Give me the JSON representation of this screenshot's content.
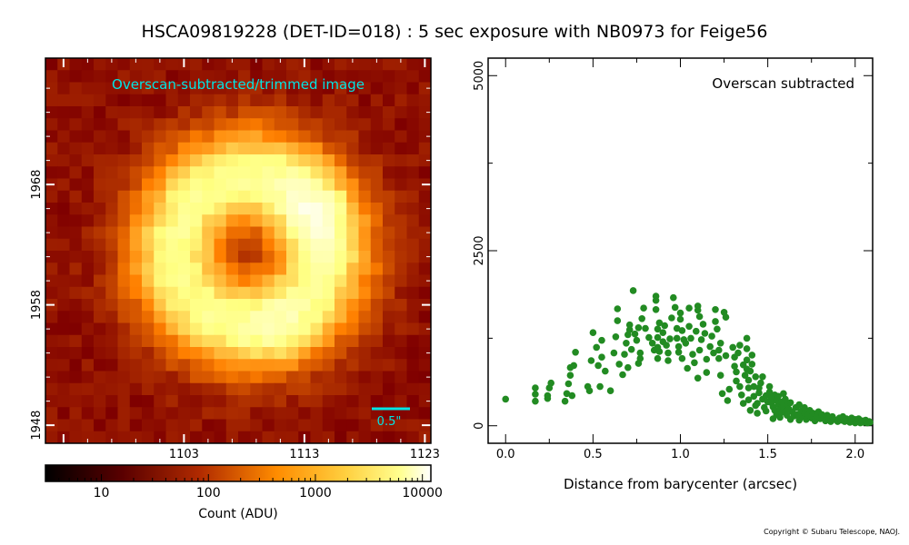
{
  "title": "HSCA09819228 (DET-ID=018) :  5 sec exposure with NB0973 for Feige56",
  "copyright": "Copyright © Subaru Telescope, NAOJ.",
  "image_panel": {
    "label": "Overscan-subtracted/trimmed image",
    "label_color": "#00e5e5",
    "scale_bar_label": "0.5\"",
    "x_ticks": [
      "1103",
      "1113",
      "1123"
    ],
    "y_ticks": [
      "1968",
      "1958",
      "1948"
    ],
    "colorbar": {
      "label": "Count (ADU)",
      "ticks": [
        "10",
        "100",
        "1000",
        "10000"
      ],
      "scale": "log",
      "range": [
        3,
        12000
      ],
      "colormap": "afmhot"
    }
  },
  "chart_data": {
    "type": "scatter",
    "annotation": "Overscan subtracted",
    "xlabel": "Distance from barycenter (arcsec)",
    "ylabel": "",
    "xlim": [
      -0.1,
      2.1
    ],
    "ylim": [
      -250,
      5250
    ],
    "x_ticks": [
      "0.0",
      "0.5",
      "1.0",
      "1.5",
      "2.0"
    ],
    "y_ticks": [
      "0",
      "2500",
      "5000"
    ],
    "marker_color": "#228b22",
    "points": [
      [
        0.0,
        380
      ],
      [
        0.17,
        350
      ],
      [
        0.17,
        450
      ],
      [
        0.17,
        540
      ],
      [
        0.24,
        390
      ],
      [
        0.24,
        430
      ],
      [
        0.25,
        540
      ],
      [
        0.26,
        610
      ],
      [
        0.34,
        350
      ],
      [
        0.35,
        460
      ],
      [
        0.36,
        600
      ],
      [
        0.37,
        720
      ],
      [
        0.37,
        830
      ],
      [
        0.38,
        430
      ],
      [
        0.39,
        860
      ],
      [
        0.4,
        1050
      ],
      [
        0.47,
        560
      ],
      [
        0.48,
        500
      ],
      [
        0.49,
        930
      ],
      [
        0.5,
        1330
      ],
      [
        0.52,
        1120
      ],
      [
        0.53,
        860
      ],
      [
        0.54,
        560
      ],
      [
        0.55,
        1220
      ],
      [
        0.55,
        980
      ],
      [
        0.57,
        780
      ],
      [
        0.6,
        500
      ],
      [
        0.62,
        1040
      ],
      [
        0.63,
        1270
      ],
      [
        0.64,
        1500
      ],
      [
        0.64,
        1670
      ],
      [
        0.65,
        880
      ],
      [
        0.67,
        730
      ],
      [
        0.68,
        1020
      ],
      [
        0.69,
        1180
      ],
      [
        0.7,
        1300
      ],
      [
        0.7,
        830
      ],
      [
        0.71,
        1440
      ],
      [
        0.71,
        1370
      ],
      [
        0.72,
        1090
      ],
      [
        0.73,
        1930
      ],
      [
        0.74,
        1310
      ],
      [
        0.75,
        1220
      ],
      [
        0.76,
        1400
      ],
      [
        0.76,
        890
      ],
      [
        0.77,
        960
      ],
      [
        0.77,
        1040
      ],
      [
        0.78,
        1530
      ],
      [
        0.79,
        1680
      ],
      [
        0.8,
        1390
      ],
      [
        0.82,
        1260
      ],
      [
        0.84,
        1180
      ],
      [
        0.85,
        1080
      ],
      [
        0.86,
        1850
      ],
      [
        0.86,
        1790
      ],
      [
        0.86,
        1660
      ],
      [
        0.87,
        1380
      ],
      [
        0.87,
        1260
      ],
      [
        0.87,
        1120
      ],
      [
        0.87,
        960
      ],
      [
        0.88,
        1470
      ],
      [
        0.88,
        1060
      ],
      [
        0.9,
        1330
      ],
      [
        0.9,
        1200
      ],
      [
        0.91,
        1430
      ],
      [
        0.92,
        1150
      ],
      [
        0.93,
        1040
      ],
      [
        0.93,
        930
      ],
      [
        0.94,
        1240
      ],
      [
        0.95,
        1540
      ],
      [
        0.96,
        1830
      ],
      [
        0.97,
        1690
      ],
      [
        0.98,
        1390
      ],
      [
        0.98,
        1250
      ],
      [
        0.99,
        1130
      ],
      [
        0.99,
        1050
      ],
      [
        1.0,
        1610
      ],
      [
        1.0,
        1520
      ],
      [
        1.01,
        1360
      ],
      [
        1.01,
        960
      ],
      [
        1.02,
        1230
      ],
      [
        1.03,
        1180
      ],
      [
        1.04,
        820
      ],
      [
        1.05,
        1680
      ],
      [
        1.05,
        1420
      ],
      [
        1.06,
        1250
      ],
      [
        1.07,
        1020
      ],
      [
        1.08,
        900
      ],
      [
        1.09,
        1350
      ],
      [
        1.1,
        1710
      ],
      [
        1.1,
        1650
      ],
      [
        1.1,
        680
      ],
      [
        1.11,
        1080
      ],
      [
        1.11,
        1560
      ],
      [
        1.12,
        1230
      ],
      [
        1.13,
        1450
      ],
      [
        1.14,
        1320
      ],
      [
        1.15,
        950
      ],
      [
        1.15,
        760
      ],
      [
        1.17,
        1130
      ],
      [
        1.18,
        1280
      ],
      [
        1.19,
        1040
      ],
      [
        1.2,
        1660
      ],
      [
        1.2,
        1490
      ],
      [
        1.21,
        1380
      ],
      [
        1.22,
        960
      ],
      [
        1.22,
        1080
      ],
      [
        1.23,
        1180
      ],
      [
        1.23,
        720
      ],
      [
        1.24,
        460
      ],
      [
        1.25,
        1620
      ],
      [
        1.26,
        1550
      ],
      [
        1.26,
        1000
      ],
      [
        1.27,
        360
      ],
      [
        1.28,
        520
      ],
      [
        1.3,
        1120
      ],
      [
        1.31,
        980
      ],
      [
        1.31,
        850
      ],
      [
        1.32,
        770
      ],
      [
        1.32,
        640
      ],
      [
        1.33,
        1040
      ],
      [
        1.34,
        1150
      ],
      [
        1.34,
        560
      ],
      [
        1.35,
        440
      ],
      [
        1.36,
        870
      ],
      [
        1.36,
        320
      ],
      [
        1.37,
        720
      ],
      [
        1.38,
        1250
      ],
      [
        1.38,
        1100
      ],
      [
        1.38,
        940
      ],
      [
        1.38,
        810
      ],
      [
        1.39,
        650
      ],
      [
        1.39,
        540
      ],
      [
        1.39,
        370
      ],
      [
        1.4,
        220
      ],
      [
        1.4,
        780
      ],
      [
        1.41,
        1010
      ],
      [
        1.41,
        880
      ],
      [
        1.42,
        560
      ],
      [
        1.42,
        420
      ],
      [
        1.43,
        290
      ],
      [
        1.43,
        700
      ],
      [
        1.44,
        180
      ],
      [
        1.44,
        320
      ],
      [
        1.45,
        540
      ],
      [
        1.45,
        470
      ],
      [
        1.46,
        610
      ],
      [
        1.47,
        700
      ],
      [
        1.47,
        380
      ],
      [
        1.48,
        260
      ],
      [
        1.49,
        210
      ],
      [
        1.49,
        430
      ],
      [
        1.5,
        340
      ],
      [
        1.51,
        560
      ],
      [
        1.51,
        480
      ],
      [
        1.52,
        400
      ],
      [
        1.52,
        330
      ],
      [
        1.53,
        270
      ],
      [
        1.53,
        100
      ],
      [
        1.54,
        220
      ],
      [
        1.54,
        440
      ],
      [
        1.55,
        360
      ],
      [
        1.55,
        160
      ],
      [
        1.56,
        420
      ],
      [
        1.56,
        300
      ],
      [
        1.57,
        230
      ],
      [
        1.57,
        120
      ],
      [
        1.58,
        190
      ],
      [
        1.58,
        340
      ],
      [
        1.59,
        460
      ],
      [
        1.59,
        270
      ],
      [
        1.6,
        200
      ],
      [
        1.6,
        380
      ],
      [
        1.61,
        150
      ],
      [
        1.61,
        300
      ],
      [
        1.62,
        240
      ],
      [
        1.63,
        90
      ],
      [
        1.63,
        330
      ],
      [
        1.64,
        200
      ],
      [
        1.65,
        140
      ],
      [
        1.66,
        260
      ],
      [
        1.67,
        160
      ],
      [
        1.68,
        80
      ],
      [
        1.68,
        300
      ],
      [
        1.69,
        210
      ],
      [
        1.7,
        130
      ],
      [
        1.71,
        180
      ],
      [
        1.71,
        260
      ],
      [
        1.72,
        90
      ],
      [
        1.73,
        150
      ],
      [
        1.74,
        220
      ],
      [
        1.75,
        110
      ],
      [
        1.76,
        180
      ],
      [
        1.77,
        70
      ],
      [
        1.78,
        140
      ],
      [
        1.79,
        200
      ],
      [
        1.8,
        100
      ],
      [
        1.81,
        160
      ],
      [
        1.82,
        120
      ],
      [
        1.83,
        70
      ],
      [
        1.84,
        150
      ],
      [
        1.85,
        110
      ],
      [
        1.86,
        60
      ],
      [
        1.87,
        130
      ],
      [
        1.88,
        90
      ],
      [
        1.9,
        60
      ],
      [
        1.91,
        110
      ],
      [
        1.92,
        80
      ],
      [
        1.93,
        130
      ],
      [
        1.94,
        60
      ],
      [
        1.95,
        100
      ],
      [
        1.96,
        70
      ],
      [
        1.97,
        50
      ],
      [
        1.98,
        110
      ],
      [
        1.99,
        80
      ],
      [
        2.0,
        40
      ],
      [
        2.0,
        90
      ],
      [
        2.01,
        60
      ],
      [
        2.02,
        100
      ],
      [
        2.03,
        40
      ],
      [
        2.04,
        70
      ],
      [
        2.05,
        50
      ],
      [
        2.06,
        80
      ],
      [
        2.07,
        40
      ],
      [
        2.08,
        60
      ],
      [
        2.09,
        50
      ]
    ]
  }
}
